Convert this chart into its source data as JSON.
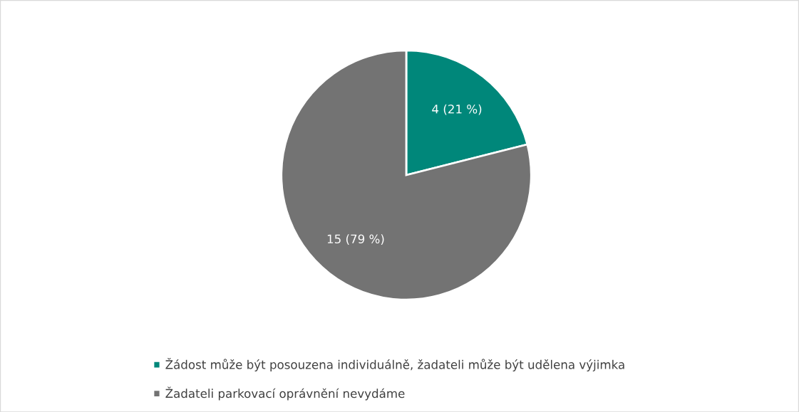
{
  "chart_data": {
    "type": "pie",
    "categories": [
      "Žádost může být posouzena individuálně, žadateli může být udělena výjimka",
      "Žadateli parkovací oprávnění nevydáme"
    ],
    "values": [
      4,
      15
    ],
    "colors": [
      "#00877a",
      "#737373"
    ],
    "value_labels": [
      "4 (21 %)",
      "15 (79 %)"
    ],
    "legend": "bottom"
  }
}
